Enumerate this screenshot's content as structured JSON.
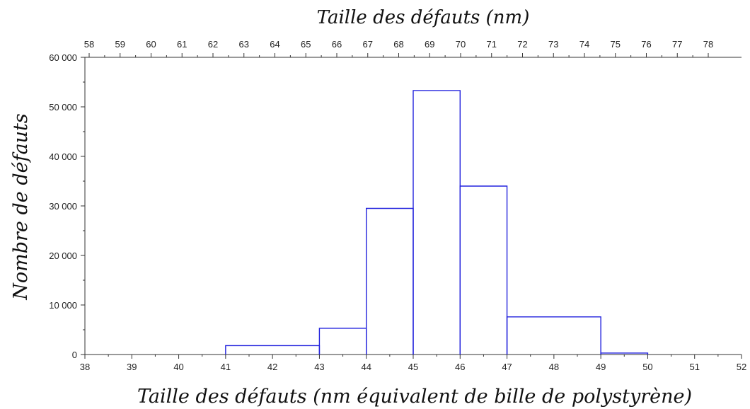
{
  "chart_data": {
    "type": "histogram",
    "top_xlabel": "Taille des défauts (nm)",
    "xlabel": "Taille des défauts (nm équivalent de bille de polystyrène)",
    "ylabel": "Nombre de défauts",
    "xlim": [
      38,
      52
    ],
    "ylim": [
      0,
      60000
    ],
    "x_ticks": [
      38,
      39,
      40,
      41,
      42,
      43,
      44,
      45,
      46,
      47,
      48,
      49,
      50,
      51,
      52
    ],
    "y_ticks": [
      0,
      10000,
      20000,
      30000,
      40000,
      50000,
      60000
    ],
    "y_tick_labels": [
      "0",
      "10 000",
      "20 000",
      "30 000",
      "40 000",
      "50 000",
      "60 000"
    ],
    "top_ticks": [
      58,
      59,
      60,
      61,
      62,
      63,
      64,
      65,
      66,
      67,
      68,
      69,
      70,
      71,
      72,
      73,
      74,
      75,
      76,
      77,
      78
    ],
    "bins": [
      {
        "x0": 41,
        "x1": 43,
        "value": 1800
      },
      {
        "x0": 43,
        "x1": 44,
        "value": 5300
      },
      {
        "x0": 44,
        "x1": 45,
        "value": 29500
      },
      {
        "x0": 45,
        "x1": 46,
        "value": 53300
      },
      {
        "x0": 46,
        "x1": 47,
        "value": 34000
      },
      {
        "x0": 47,
        "x1": 49,
        "value": 7600
      },
      {
        "x0": 49,
        "x1": 50,
        "value": 300
      }
    ],
    "series_color": "#2222dd",
    "grid": false
  }
}
